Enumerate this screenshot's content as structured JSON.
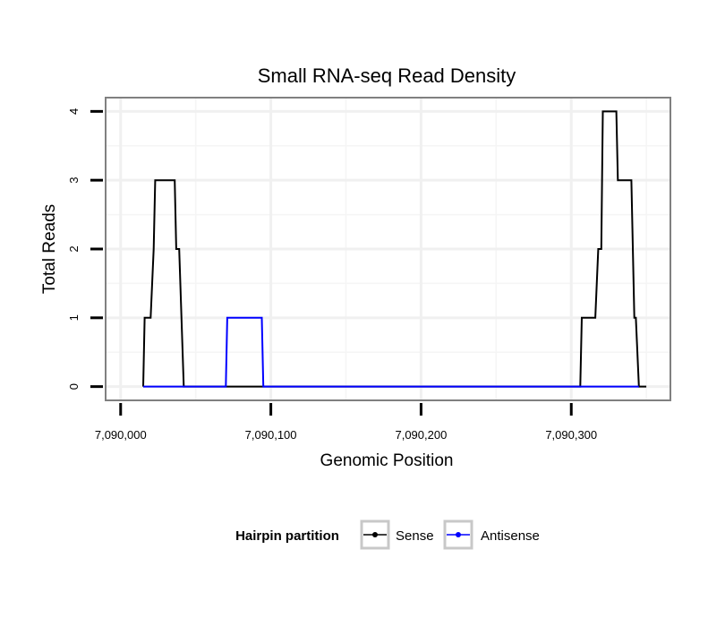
{
  "chart_data": {
    "type": "line",
    "title": "Small RNA-seq Read Density",
    "xlabel": "Genomic Position",
    "ylabel": "Total Reads",
    "xlim": [
      7089990,
      7090366
    ],
    "ylim": [
      -0.2,
      4.2
    ],
    "x_ticks": [
      7090000,
      7090100,
      7090200,
      7090300
    ],
    "x_tick_labels": [
      "7,090,000",
      "7,090,100",
      "7,090,200",
      "7,090,300"
    ],
    "y_ticks": [
      0,
      1,
      2,
      3,
      4
    ],
    "y_tick_labels": [
      "0",
      "1",
      "2",
      "3",
      "4"
    ],
    "grid": true,
    "legend": {
      "title": "Hairpin partition",
      "position": "bottom"
    },
    "series": [
      {
        "name": "Sense",
        "color": "#000000",
        "x": [
          7090015,
          7090016,
          7090019,
          7090020,
          7090022,
          7090023,
          7090036,
          7090037,
          7090038,
          7090039,
          7090042,
          7090070,
          7090095,
          7090305,
          7090306,
          7090307,
          7090316,
          7090318,
          7090320,
          7090321,
          7090330,
          7090331,
          7090339,
          7090340,
          7090342,
          7090343,
          7090345,
          7090350
        ],
        "values": [
          0,
          1,
          1,
          1,
          2,
          3,
          3,
          2,
          2,
          2,
          0,
          0,
          0,
          0,
          0,
          1,
          1,
          2,
          2,
          4,
          4,
          3,
          3,
          3,
          1,
          1,
          0,
          0
        ]
      },
      {
        "name": "Antisense",
        "color": "#0000ff",
        "x": [
          7090015,
          7090070,
          7090071,
          7090094,
          7090095,
          7090300,
          7090345
        ],
        "values": [
          0,
          0,
          1,
          1,
          0,
          0,
          0
        ]
      }
    ]
  }
}
